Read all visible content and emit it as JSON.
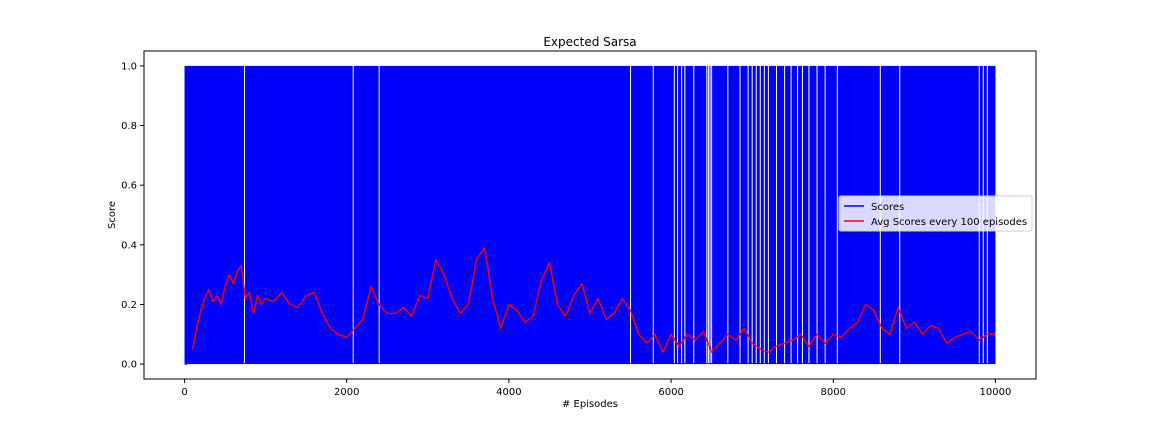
{
  "chart_data": {
    "type": "line",
    "title": "Expected Sarsa",
    "xlabel": "# Episodes",
    "ylabel": "Score",
    "xlim": [
      -500,
      10500
    ],
    "ylim": [
      -0.05,
      1.05
    ],
    "xticks": [
      0,
      2000,
      4000,
      6000,
      8000,
      10000
    ],
    "xtick_labels": [
      "0",
      "2000",
      "4000",
      "6000",
      "8000",
      "10000"
    ],
    "yticks": [
      0.0,
      0.2,
      0.4,
      0.6,
      0.8,
      1.0
    ],
    "ytick_labels": [
      "0.0",
      "0.2",
      "0.4",
      "0.6",
      "0.8",
      "1.0"
    ],
    "grid": false,
    "legend_position": "center-right",
    "series": [
      {
        "name": "Scores",
        "color": "#0000ff",
        "style": "binary 0/1 score per episode, densely alternating",
        "score_range": [
          0,
          1
        ],
        "zero_gap_episodes": [
          740,
          2080,
          2400,
          5500,
          5780,
          6040,
          6080,
          6130,
          6170,
          6280,
          6440,
          6460,
          6480,
          6500,
          6700,
          6850,
          6950,
          7000,
          7050,
          7100,
          7150,
          7200,
          7300,
          7400,
          7480,
          7560,
          7620,
          7700,
          7800,
          7900,
          8050,
          8580,
          8820,
          9800,
          9850,
          9900
        ]
      },
      {
        "name": "Avg Scores every 100 episodes",
        "color": "#ff0000",
        "style": "line",
        "x": [
          100,
          150,
          200,
          250,
          300,
          350,
          400,
          450,
          500,
          550,
          600,
          650,
          700,
          750,
          800,
          850,
          900,
          950,
          1000,
          1100,
          1200,
          1300,
          1400,
          1500,
          1600,
          1700,
          1800,
          1900,
          2000,
          2100,
          2200,
          2300,
          2400,
          2500,
          2600,
          2700,
          2800,
          2900,
          3000,
          3100,
          3200,
          3300,
          3400,
          3500,
          3600,
          3700,
          3800,
          3900,
          4000,
          4100,
          4200,
          4300,
          4400,
          4500,
          4600,
          4700,
          4800,
          4900,
          5000,
          5100,
          5200,
          5300,
          5400,
          5500,
          5600,
          5700,
          5800,
          5900,
          6000,
          6100,
          6200,
          6300,
          6400,
          6500,
          6600,
          6700,
          6800,
          6900,
          7000,
          7100,
          7200,
          7300,
          7400,
          7500,
          7600,
          7700,
          7800,
          7900,
          8000,
          8100,
          8200,
          8300,
          8400,
          8500,
          8600,
          8700,
          8800,
          8900,
          9000,
          9100,
          9200,
          9300,
          9400,
          9500,
          9600,
          9700,
          9800,
          9900,
          10000
        ],
        "y": [
          0.05,
          0.12,
          0.18,
          0.22,
          0.25,
          0.21,
          0.23,
          0.2,
          0.26,
          0.3,
          0.27,
          0.31,
          0.33,
          0.22,
          0.24,
          0.17,
          0.23,
          0.2,
          0.22,
          0.21,
          0.24,
          0.2,
          0.19,
          0.23,
          0.24,
          0.17,
          0.12,
          0.1,
          0.09,
          0.12,
          0.15,
          0.26,
          0.2,
          0.17,
          0.17,
          0.19,
          0.16,
          0.23,
          0.22,
          0.35,
          0.3,
          0.22,
          0.17,
          0.2,
          0.35,
          0.39,
          0.22,
          0.12,
          0.2,
          0.18,
          0.14,
          0.16,
          0.28,
          0.34,
          0.2,
          0.16,
          0.23,
          0.27,
          0.17,
          0.22,
          0.15,
          0.17,
          0.22,
          0.18,
          0.1,
          0.07,
          0.1,
          0.04,
          0.1,
          0.06,
          0.1,
          0.08,
          0.11,
          0.04,
          0.07,
          0.1,
          0.08,
          0.12,
          0.07,
          0.05,
          0.04,
          0.06,
          0.07,
          0.08,
          0.1,
          0.06,
          0.1,
          0.07,
          0.1,
          0.09,
          0.12,
          0.14,
          0.2,
          0.18,
          0.12,
          0.1,
          0.19,
          0.12,
          0.14,
          0.1,
          0.13,
          0.12,
          0.07,
          0.09,
          0.1,
          0.11,
          0.08,
          0.1,
          0.1
        ]
      }
    ]
  }
}
